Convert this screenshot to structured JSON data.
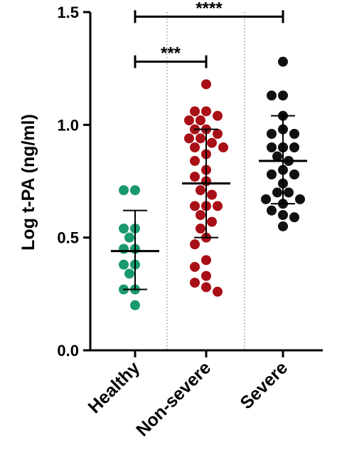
{
  "chart_data": {
    "type": "scatter",
    "ylabel": "Log t-PA (ng/ml)",
    "ylim": [
      0.0,
      1.5
    ],
    "yticks": [
      0.0,
      0.5,
      1.0,
      1.5
    ],
    "ytick_labels": [
      "0.0",
      "0.5",
      "1.0",
      "1.5"
    ],
    "categories": [
      "Healthy",
      "Non-severe",
      "Severe"
    ],
    "group_separators": "dotted",
    "series": [
      {
        "category": "Healthy",
        "color": "#1a9a6c",
        "values": [
          0.71,
          0.71,
          0.54,
          0.54,
          0.5,
          0.45,
          0.45,
          0.38,
          0.38,
          0.34,
          0.27,
          0.27,
          0.2
        ],
        "mean": 0.44,
        "sd_low": 0.27,
        "sd_high": 0.62
      },
      {
        "category": "Non-severe",
        "color": "#a80f16",
        "values": [
          1.18,
          1.06,
          1.06,
          1.04,
          1.02,
          1.02,
          0.98,
          0.98,
          0.96,
          0.94,
          0.94,
          0.92,
          0.9,
          0.9,
          0.87,
          0.84,
          0.8,
          0.77,
          0.75,
          0.71,
          0.69,
          0.64,
          0.64,
          0.64,
          0.6,
          0.57,
          0.54,
          0.5,
          0.47,
          0.4,
          0.37,
          0.33,
          0.3,
          0.28,
          0.26
        ],
        "mean": 0.74,
        "sd_low": 0.5,
        "sd_high": 0.98
      },
      {
        "category": "Severe",
        "color": "#111111",
        "values": [
          1.28,
          1.13,
          1.13,
          1.04,
          0.98,
          0.96,
          0.96,
          0.9,
          0.9,
          0.9,
          0.9,
          0.86,
          0.84,
          0.8,
          0.78,
          0.78,
          0.74,
          0.7,
          0.7,
          0.67,
          0.67,
          0.65,
          0.62,
          0.6,
          0.59,
          0.55
        ],
        "mean": 0.84,
        "sd_low": 0.65,
        "sd_high": 1.04
      }
    ],
    "significance": [
      {
        "from": "Healthy",
        "to": "Non-severe",
        "label": "***",
        "y": 1.28
      },
      {
        "from": "Healthy",
        "to": "Severe",
        "label": "****",
        "y": 1.48
      }
    ]
  }
}
